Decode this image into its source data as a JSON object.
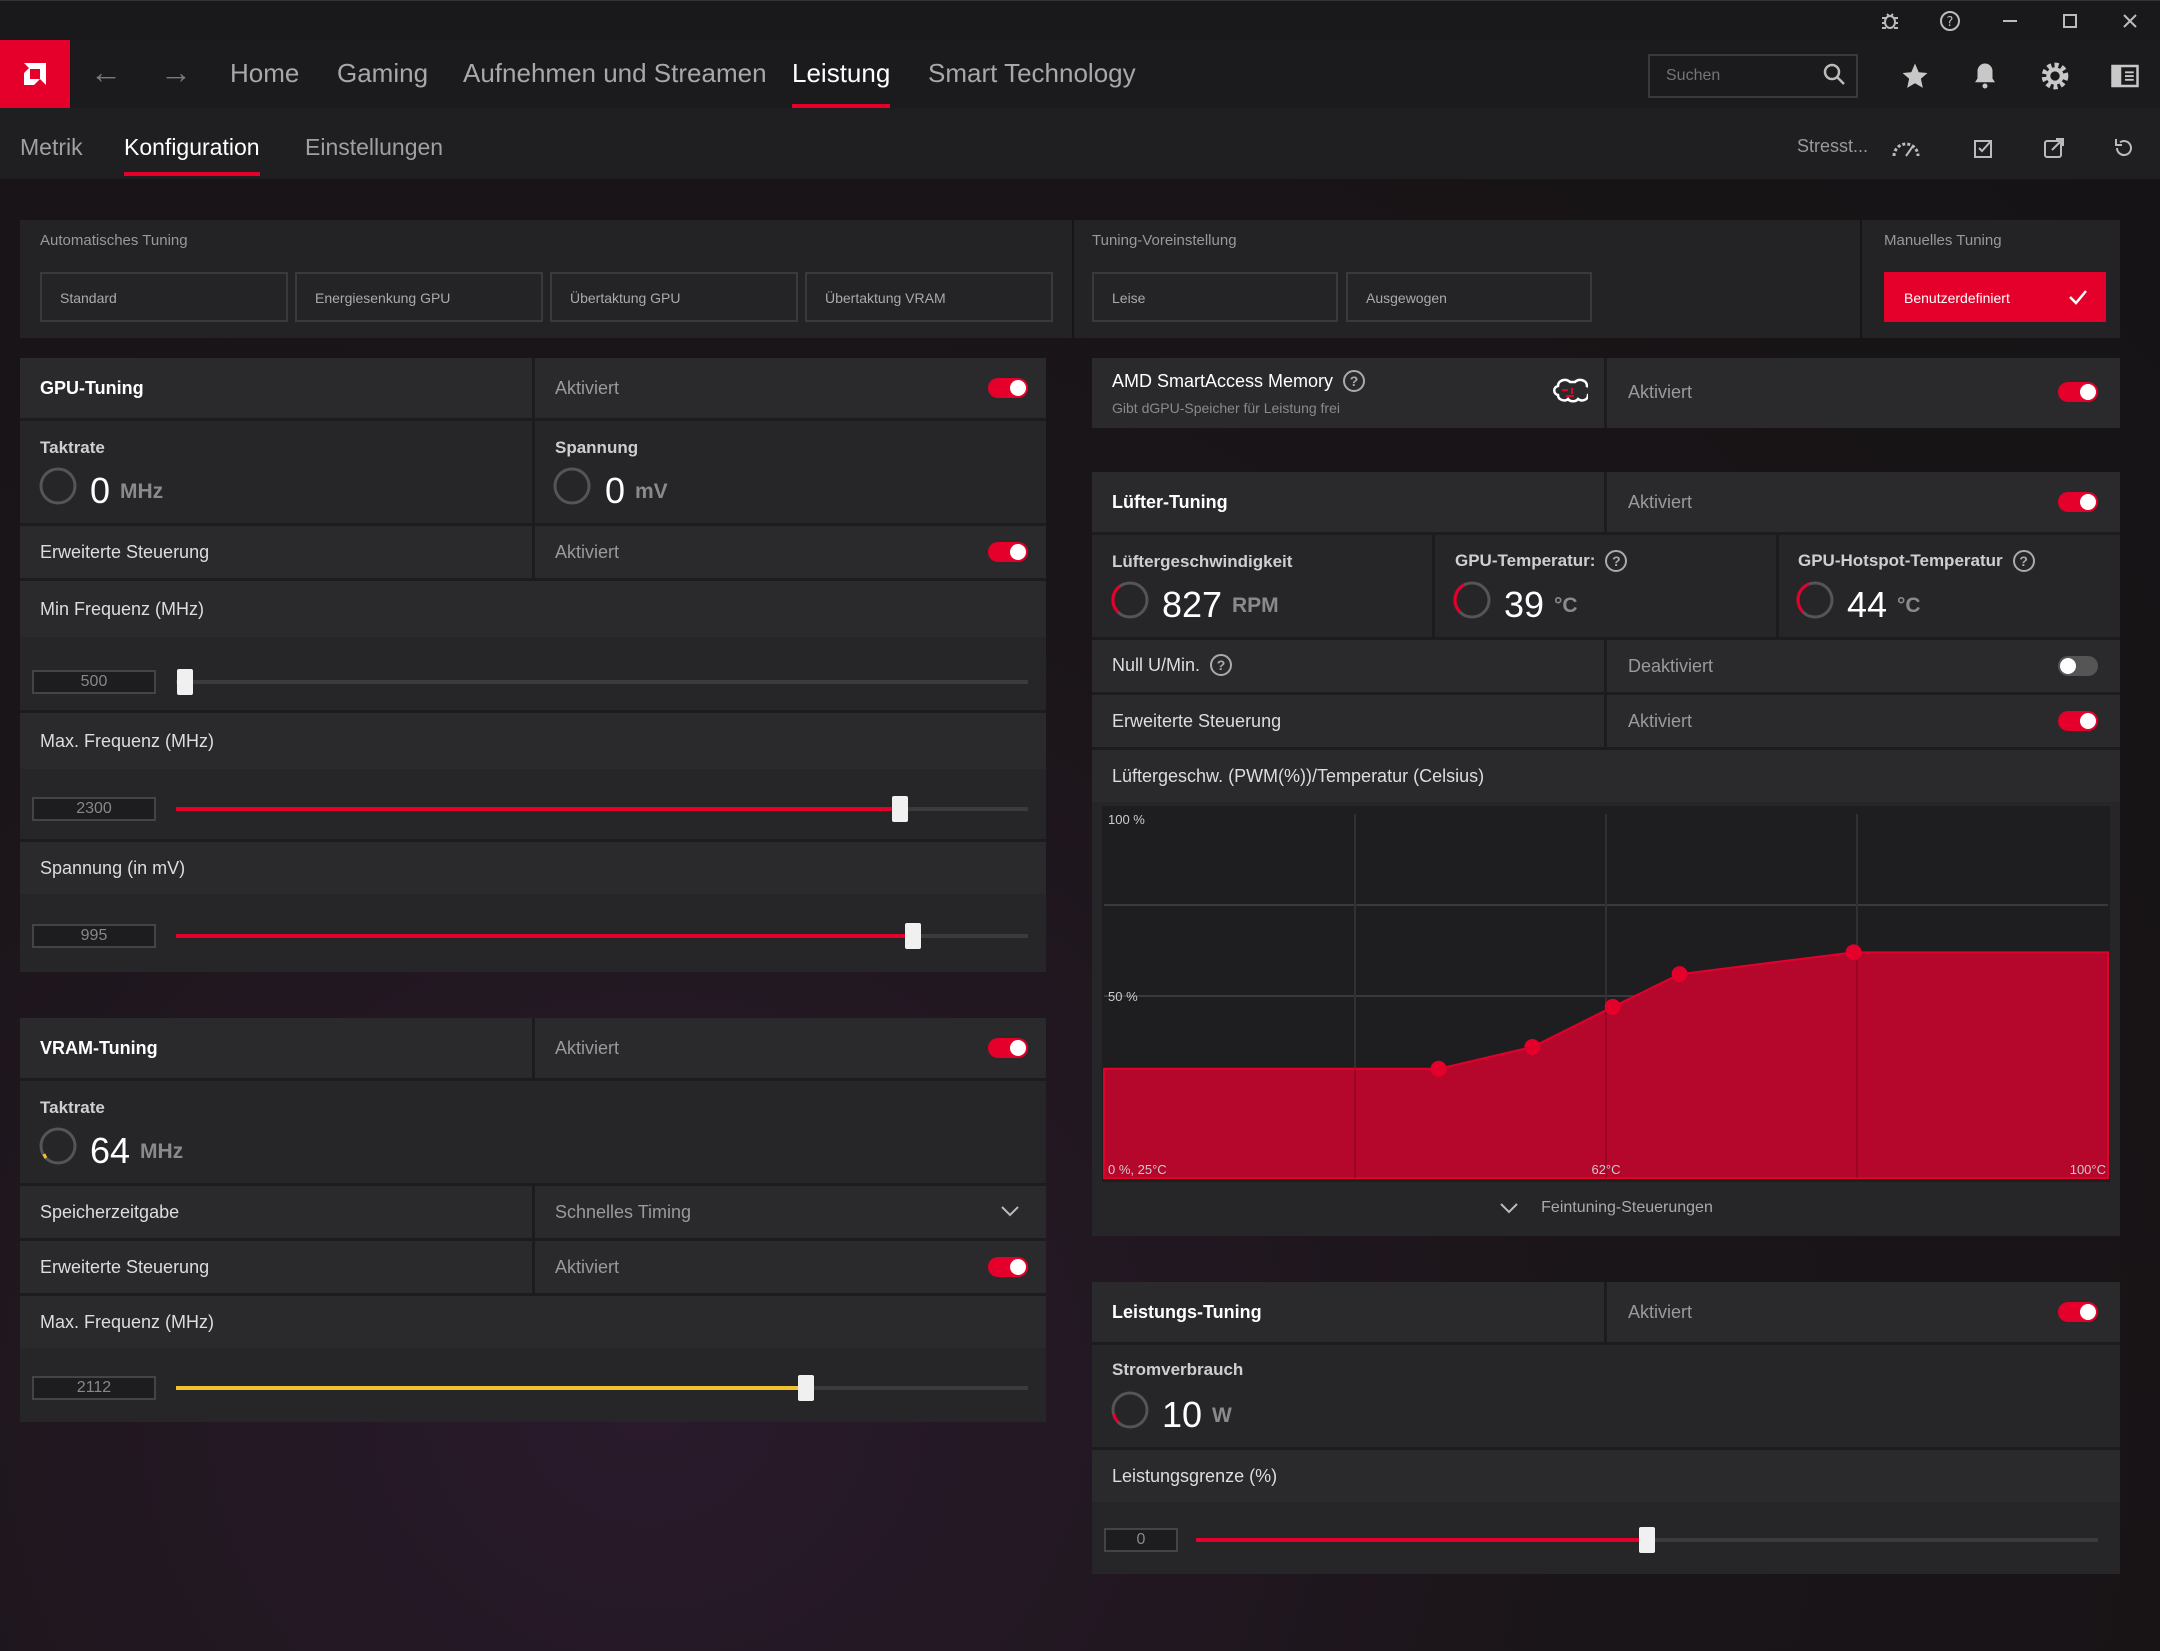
{
  "nav": {
    "tabs": [
      "Home",
      "Gaming",
      "Aufnehmen und Streamen",
      "Leistung",
      "Smart Technology"
    ],
    "search_placeholder": "Suchen"
  },
  "subnav": {
    "tabs": [
      "Metrik",
      "Konfiguration",
      "Einstellungen"
    ],
    "stress_label": "Stresst..."
  },
  "tuning": {
    "auto_title": "Automatisches Tuning",
    "auto_buttons": [
      "Standard",
      "Energiesenkung GPU",
      "Übertaktung GPU",
      "Übertaktung VRAM"
    ],
    "preset_title": "Tuning-Voreinstellung",
    "preset_buttons": [
      "Leise",
      "Ausgewogen"
    ],
    "manual_title": "Manuelles Tuning",
    "manual_button": "Benutzerdefiniert"
  },
  "gpu": {
    "title": "GPU-Tuning",
    "status": "Aktiviert",
    "clock_label": "Taktrate",
    "clock_value": "0",
    "clock_unit": "MHz",
    "voltage_label": "Spannung",
    "voltage_value": "0",
    "voltage_unit": "mV",
    "adv_label": "Erweiterte Steuerung",
    "adv_status": "Aktiviert",
    "min_freq_label": "Min Frequenz (MHz)",
    "min_freq_value": "500",
    "min_freq_fraction": 0.01,
    "max_freq_label": "Max. Frequenz (MHz)",
    "max_freq_value": "2300",
    "max_freq_fraction": 0.85,
    "volt_label": "Spannung (in mV)",
    "volt_value": "995",
    "volt_fraction": 0.865
  },
  "vram": {
    "title": "VRAM-Tuning",
    "status": "Aktiviert",
    "clock_label": "Taktrate",
    "clock_value": "64",
    "clock_unit": "MHz",
    "timing_label": "Speicherzeitgabe",
    "timing_value": "Schnelles Timing",
    "adv_label": "Erweiterte Steuerung",
    "adv_status": "Aktiviert",
    "max_freq_label": "Max. Frequenz (MHz)",
    "max_freq_value": "2112",
    "max_freq_fraction": 0.74
  },
  "sam": {
    "title": "AMD SmartAccess Memory",
    "subtitle": "Gibt dGPU-Speicher für Leistung frei",
    "status": "Aktiviert"
  },
  "fan": {
    "title": "Lüfter-Tuning",
    "status": "Aktiviert",
    "speed_label": "Lüftergeschwindigkeit",
    "speed_value": "827",
    "speed_unit": "RPM",
    "temp_label": "GPU-Temperatur:",
    "temp_value": "39",
    "temp_unit": "°C",
    "hotspot_label": "GPU-Hotspot-Temperatur",
    "hotspot_value": "44",
    "hotspot_unit": "°C",
    "zero_rpm_label": "Null U/Min.",
    "zero_rpm_status": "Deaktiviert",
    "adv_label": "Erweiterte Steuerung",
    "adv_status": "Aktiviert",
    "curve_label": "Lüftergeschw. (PWM(%))/Temperatur (Celsius)",
    "fine_tune_label": "Feintuning-Steuerungen"
  },
  "chart_data": {
    "type": "area",
    "title": "",
    "xlabel": "",
    "ylabel": "",
    "xlim": [
      25,
      100
    ],
    "ylim": [
      0,
      100
    ],
    "y_tick_labels": [
      "100 %",
      "50 %"
    ],
    "x_tick_labels": [
      "0 %, 25°C",
      "62°C",
      "100°C"
    ],
    "grid": true,
    "points": [
      {
        "x": 50,
        "y": 30
      },
      {
        "x": 57,
        "y": 36
      },
      {
        "x": 63,
        "y": 47
      },
      {
        "x": 68,
        "y": 56
      },
      {
        "x": 81,
        "y": 62
      }
    ],
    "color": "#e4002b"
  },
  "power": {
    "title": "Leistungs-Tuning",
    "status": "Aktiviert",
    "consumption_label": "Stromverbrauch",
    "consumption_value": "10",
    "consumption_unit": "W",
    "limit_label": "Leistungsgrenze (%)",
    "limit_value": "0",
    "limit_fraction": 0.5
  },
  "colors": {
    "accent": "#e4002b",
    "vram_accent": "#f2c12e"
  }
}
